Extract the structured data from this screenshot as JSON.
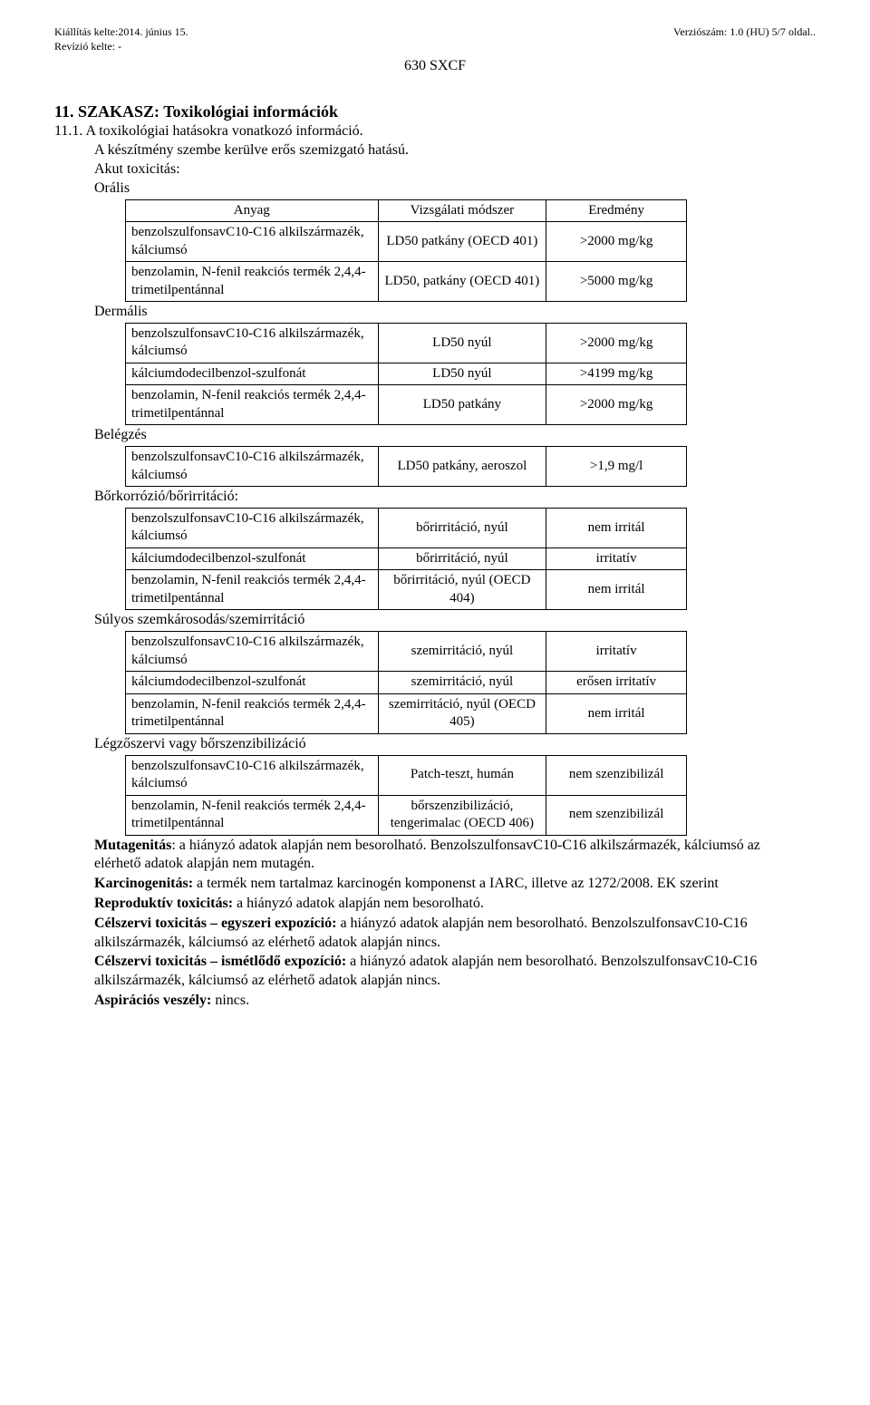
{
  "header": {
    "issued_label": "Kiállítás kelte:2014. június 15.",
    "revision_label": "Revízió kelte: -",
    "version_label": "Verziószám: 1.0 (HU) 5/7 oldal..",
    "product": "630 SXCF"
  },
  "section": {
    "title": "11. SZAKASZ: Toxikológiai információk",
    "sub_number": "11.1.",
    "sub_title": "A toxikológiai hatásokra vonatkozó információ.",
    "intro": "A készítmény szembe kerülve erős szemizgató hatású.",
    "akut_label": "Akut toxicitás:"
  },
  "tables_header": {
    "c1": "Anyag",
    "c2": "Vizsgálati módszer",
    "c3": "Eredmény"
  },
  "routes": {
    "oral": "Orális",
    "dermal": "Dermális",
    "inhale": "Belégzés",
    "skin": "Bőrkorrózió/bőrirritáció:",
    "eye": "Súlyos szemkárosodás/szemirritáció",
    "sens": "Légzőszervi vagy bőrszenzibilizáció"
  },
  "substances": {
    "s1": "benzolszulfonsavC10-C16 alkilszármazék, kálciumsó",
    "s2": "benzolamin, N-fenil reakciós termék 2,4,4-trimetilpentánnal",
    "s3": "kálciumdodecilbenzol-szulfonát"
  },
  "oral": [
    {
      "m": "LD50 patkány (OECD 401)",
      "r": ">2000 mg/kg"
    },
    {
      "m": "LD50, patkány (OECD 401)",
      "r": ">5000 mg/kg"
    }
  ],
  "dermal": [
    {
      "m": "LD50 nyúl",
      "r": ">2000 mg/kg"
    },
    {
      "m": "LD50 nyúl",
      "r": ">4199 mg/kg"
    },
    {
      "m": "LD50 patkány",
      "r": ">2000 mg/kg"
    }
  ],
  "inhale": [
    {
      "m": "LD50 patkány, aeroszol",
      "r": ">1,9 mg/l"
    }
  ],
  "skin": [
    {
      "m": "bőrirritáció, nyúl",
      "r": "nem irritál"
    },
    {
      "m": "bőrirritáció, nyúl",
      "r": "irritatív"
    },
    {
      "m": "bőrirritáció, nyúl (OECD 404)",
      "r": "nem irritál"
    }
  ],
  "eye": [
    {
      "m": "szemirritáció, nyúl",
      "r": "irritatív"
    },
    {
      "m": "szemirritáció, nyúl",
      "r": "erősen irritatív"
    },
    {
      "m": "szemirritáció, nyúl (OECD 405)",
      "r": "nem irritál"
    }
  ],
  "sens": [
    {
      "m": "Patch-teszt, humán",
      "r": "nem szenzibilizál"
    },
    {
      "m": "bőrszenzibilizáció, tengerimalac (OECD 406)",
      "r": "nem szenzibilizál"
    }
  ],
  "paras": {
    "muta_b": "Mutagenitás",
    "muta_t": ": a hiányzó adatok alapján nem besorolható. BenzolszulfonsavC10-C16 alkilszármazék, kálciumsó az elérhető adatok alapján nem mutagén.",
    "karc_b": "Karcinogenitás:",
    "karc_t": " a termék nem tartalmaz karcinogén komponenst a IARC, illetve az 1272/2008. EK szerint",
    "repr_b": "Reproduktív toxicitás:",
    "repr_t": " a hiányzó adatok alapján nem besorolható.",
    "cs1_b": "Célszervi toxicitás – egyszeri expozíció:",
    "cs1_t": " a hiányzó adatok alapján nem besorolható. BenzolszulfonsavC10-C16 alkilszármazék, kálciumsó az elérhető adatok alapján nincs.",
    "cs2_b": "Célszervi toxicitás – ismétlődő expozíció:",
    "cs2_t": " a hiányzó adatok alapján nem besorolható. BenzolszulfonsavC10-C16 alkilszármazék, kálciumsó az elérhető adatok alapján nincs.",
    "asp_b": "Aspirációs veszély:",
    "asp_t": " nincs."
  }
}
